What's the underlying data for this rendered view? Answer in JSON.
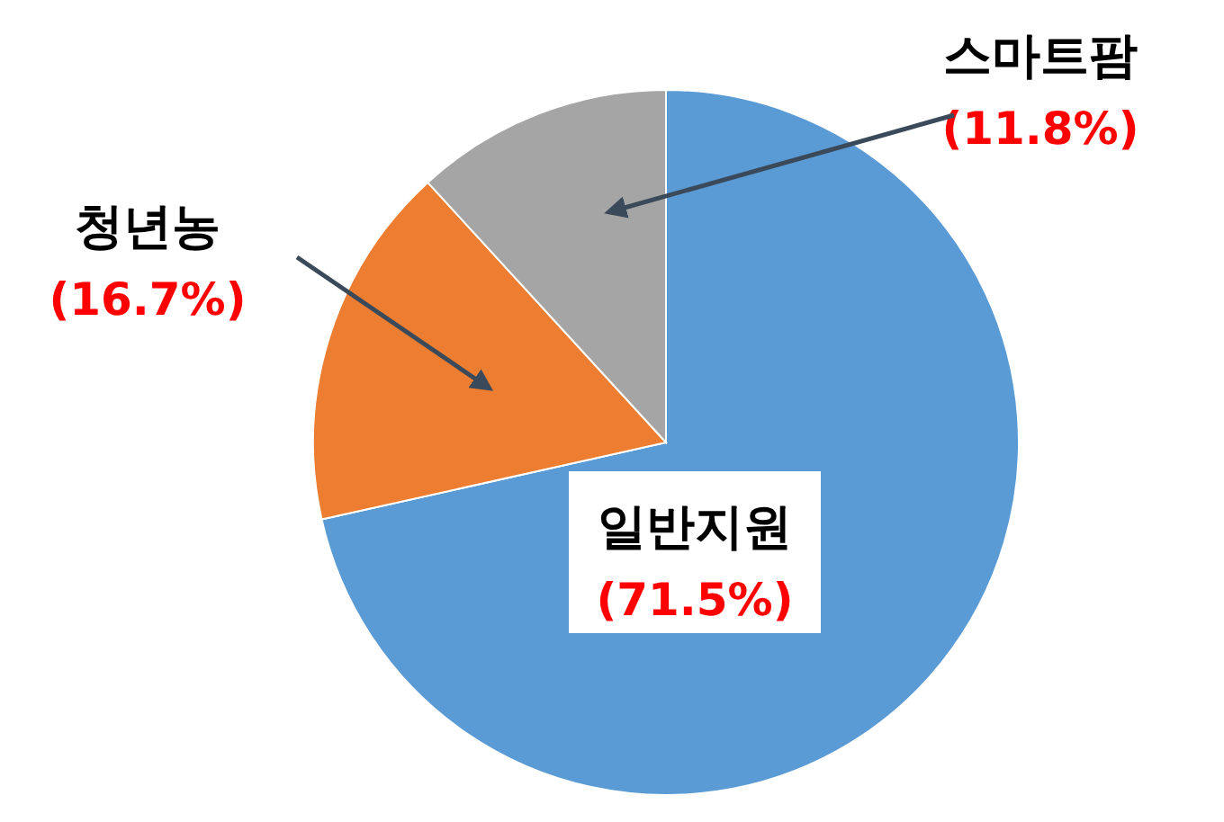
{
  "chart_data": {
    "type": "pie",
    "categories": [
      "일반지원",
      "청년농",
      "스마트팜"
    ],
    "values": [
      71.5,
      16.7,
      11.8
    ],
    "colors": [
      "#5b9bd5",
      "#ed7d31",
      "#a5a5a5"
    ],
    "value_labels": [
      "(71.5%)",
      "(16.7%)",
      "(11.8%)"
    ]
  }
}
